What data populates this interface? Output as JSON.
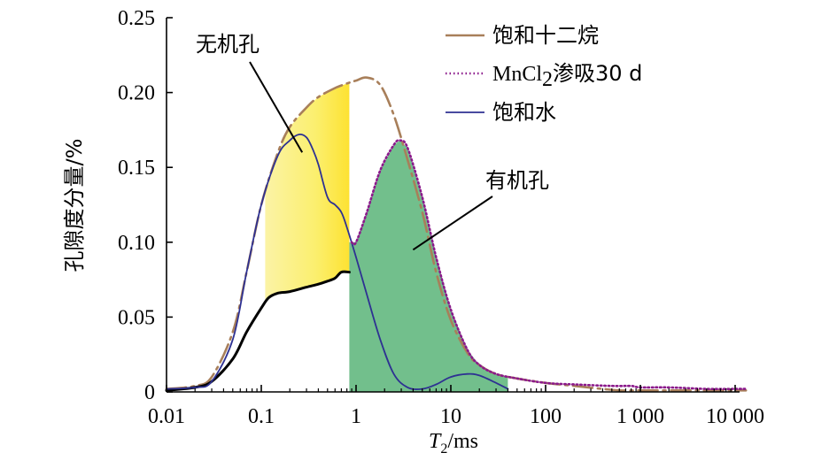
{
  "chart_data": {
    "type": "line",
    "xlabel": {
      "italic": "T",
      "sub": "2",
      "rest": "/ms"
    },
    "ylabel": "孔隙度分量/%",
    "x_scale": "log",
    "xlim": [
      0.01,
      15000
    ],
    "ylim": [
      0,
      0.25
    ],
    "x_ticks": [
      {
        "value": 0.01,
        "label": "0.01"
      },
      {
        "value": 0.1,
        "label": "0.1"
      },
      {
        "value": 1,
        "label": "1"
      },
      {
        "value": 10,
        "label": "10"
      },
      {
        "value": 100,
        "label": "100"
      },
      {
        "value": 1000,
        "label": "1 000"
      },
      {
        "value": 10000,
        "label": "10 000"
      }
    ],
    "y_ticks": [
      {
        "value": 0,
        "label": "0"
      },
      {
        "value": 0.05,
        "label": "0.05"
      },
      {
        "value": 0.1,
        "label": "0.10"
      },
      {
        "value": 0.15,
        "label": "0.15"
      },
      {
        "value": 0.2,
        "label": "0.20"
      },
      {
        "value": 0.25,
        "label": "0.25"
      }
    ],
    "legend_position": "top-right",
    "legend": [
      {
        "label": "饱和十二烷",
        "series": "dodecane",
        "style": "dashdot",
        "color": "#a87f5a"
      },
      {
        "label_main": "MnCl",
        "label_sub": "2",
        "label_rest": "渗吸30 d",
        "series": "mncl2",
        "style": "dotted",
        "color": "#8b1a8b"
      },
      {
        "label": "饱和水",
        "series": "water",
        "style": "solid",
        "color": "#2e3192"
      }
    ],
    "annotations": [
      {
        "text": "无机孔",
        "target_x": 0.27,
        "target_y": 0.16
      },
      {
        "text": "有机孔",
        "target_x": 4.0,
        "target_y": 0.095
      }
    ],
    "series": [
      {
        "id": "dodecane",
        "color": "#a87f5a",
        "style": "dashdot",
        "x": [
          0.01,
          0.02,
          0.03,
          0.05,
          0.07,
          0.1,
          0.15,
          0.2,
          0.3,
          0.4,
          0.6,
          0.8,
          1.0,
          1.3,
          1.8,
          2.5,
          3.5,
          5,
          7,
          10,
          15,
          20,
          30,
          50,
          100,
          200,
          400,
          600,
          1000,
          2000,
          5000,
          10000,
          13000
        ],
        "y": [
          0.002,
          0.004,
          0.01,
          0.04,
          0.08,
          0.125,
          0.16,
          0.177,
          0.19,
          0.197,
          0.203,
          0.206,
          0.208,
          0.21,
          0.205,
          0.185,
          0.155,
          0.12,
          0.08,
          0.048,
          0.026,
          0.018,
          0.012,
          0.009,
          0.006,
          0.004,
          0.002,
          0.001,
          0.001,
          0.001,
          0.001,
          0.001,
          0.001
        ]
      },
      {
        "id": "mncl2",
        "color": "#8b1a8b",
        "style": "dotted",
        "x": [
          0.9,
          1.0,
          1.3,
          1.8,
          2.5,
          2.9,
          3.5,
          5,
          7,
          10,
          15,
          20,
          30,
          50,
          100,
          200,
          500,
          800,
          1000,
          2000,
          5000,
          10000,
          13000
        ],
        "y": [
          0.1,
          0.1,
          0.12,
          0.148,
          0.165,
          0.168,
          0.163,
          0.13,
          0.09,
          0.055,
          0.028,
          0.018,
          0.012,
          0.009,
          0.006,
          0.005,
          0.004,
          0.004,
          0.003,
          0.003,
          0.002,
          0.002,
          0.002
        ]
      },
      {
        "id": "water",
        "color": "#2e3192",
        "style": "solid",
        "x": [
          0.01,
          0.02,
          0.03,
          0.05,
          0.07,
          0.1,
          0.15,
          0.2,
          0.25,
          0.3,
          0.35,
          0.4,
          0.5,
          0.6,
          0.7,
          0.8,
          1.0,
          1.3,
          1.8,
          2.5,
          3.5,
          5,
          7,
          10,
          15,
          20,
          30,
          40
        ],
        "y": [
          0.002,
          0.003,
          0.007,
          0.035,
          0.08,
          0.125,
          0.158,
          0.168,
          0.172,
          0.17,
          0.162,
          0.152,
          0.13,
          0.125,
          0.12,
          0.11,
          0.09,
          0.065,
          0.035,
          0.012,
          0.003,
          0.002,
          0.005,
          0.01,
          0.012,
          0.011,
          0.006,
          0.002
        ]
      },
      {
        "id": "inorganic-lower",
        "color": "#000000",
        "style": "solid",
        "x": [
          0.01,
          0.02,
          0.03,
          0.05,
          0.07,
          0.1,
          0.12,
          0.15,
          0.2,
          0.3,
          0.4,
          0.5,
          0.6,
          0.7,
          0.85
        ],
        "y": [
          0.001,
          0.003,
          0.007,
          0.022,
          0.04,
          0.056,
          0.063,
          0.066,
          0.067,
          0.07,
          0.072,
          0.074,
          0.076,
          0.08,
          0.08
        ]
      }
    ],
    "fills": [
      {
        "name": "inorganic-pore-fill",
        "color_light": "#faf3a0",
        "color_strong": "#fde232",
        "x_start": 0.2,
        "x_end": 0.85
      },
      {
        "name": "organic-pore-fill",
        "color": "#72bf8c",
        "x_start": 0.85,
        "x_end": 40
      }
    ]
  }
}
